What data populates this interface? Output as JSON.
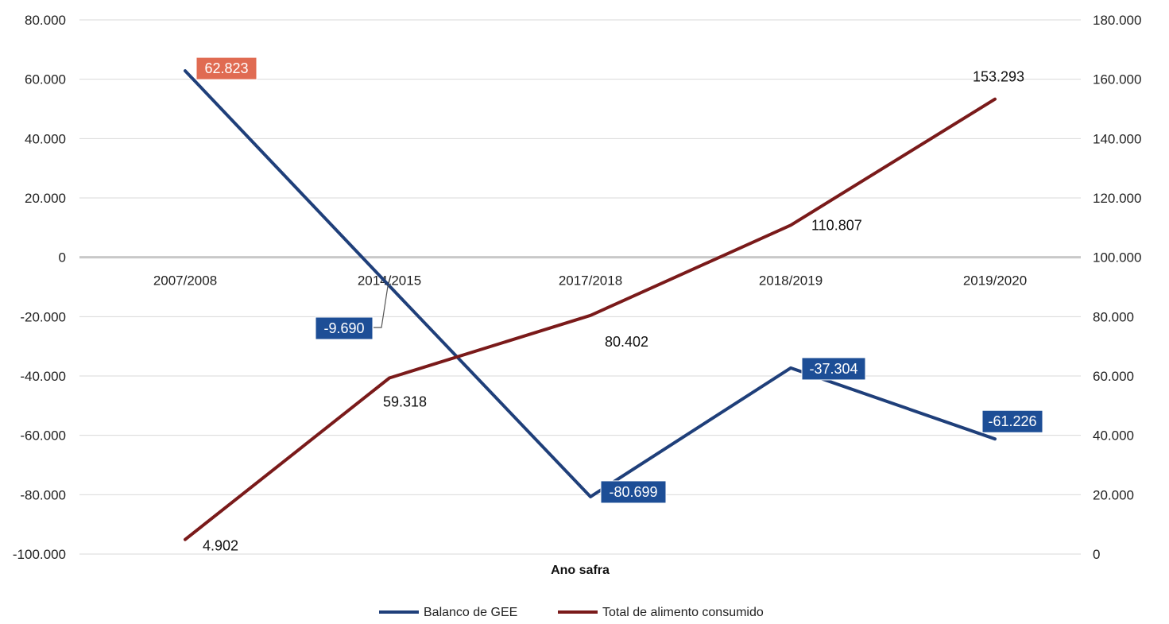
{
  "chart_data": {
    "type": "line",
    "title": "",
    "xlabel": "Ano safra",
    "categories": [
      "2007/2008",
      "2014/2015",
      "2017/2018",
      "2018/2019",
      "2019/2020"
    ],
    "y_left": {
      "range": [
        -100000,
        80000
      ],
      "ticks": [
        "80.000",
        "60.000",
        "40.000",
        "20.000",
        "0",
        "-20.000",
        "-40.000",
        "-60.000",
        "-80.000",
        "-100.000"
      ]
    },
    "y_right": {
      "range": [
        0,
        180000
      ],
      "ticks": [
        "180.000",
        "160.000",
        "140.000",
        "120.000",
        "100.000",
        "80.000",
        "60.000",
        "40.000",
        "20.000",
        "0"
      ]
    },
    "grid": true,
    "legend_position": "bottom",
    "series": [
      {
        "name": "Balanco de GEE",
        "axis": "left",
        "color": "#1f3f7a",
        "values": [
          62823,
          -9690,
          -80699,
          -37304,
          -61226
        ],
        "labels": [
          "62.823",
          "-9.690",
          "-80.699",
          "-37.304",
          "-61.226"
        ],
        "label_colors": [
          "#e06b52",
          "#1d4e96",
          "#1d4e96",
          "#1d4e96",
          "#1d4e96"
        ]
      },
      {
        "name": "Total de alimento consumido",
        "axis": "right",
        "color": "#7a1a1a",
        "values": [
          4902,
          59318,
          80402,
          110807,
          153293
        ],
        "labels": [
          "4.902",
          "59.318",
          "80.402",
          "110.807",
          "153.293"
        ]
      }
    ]
  }
}
